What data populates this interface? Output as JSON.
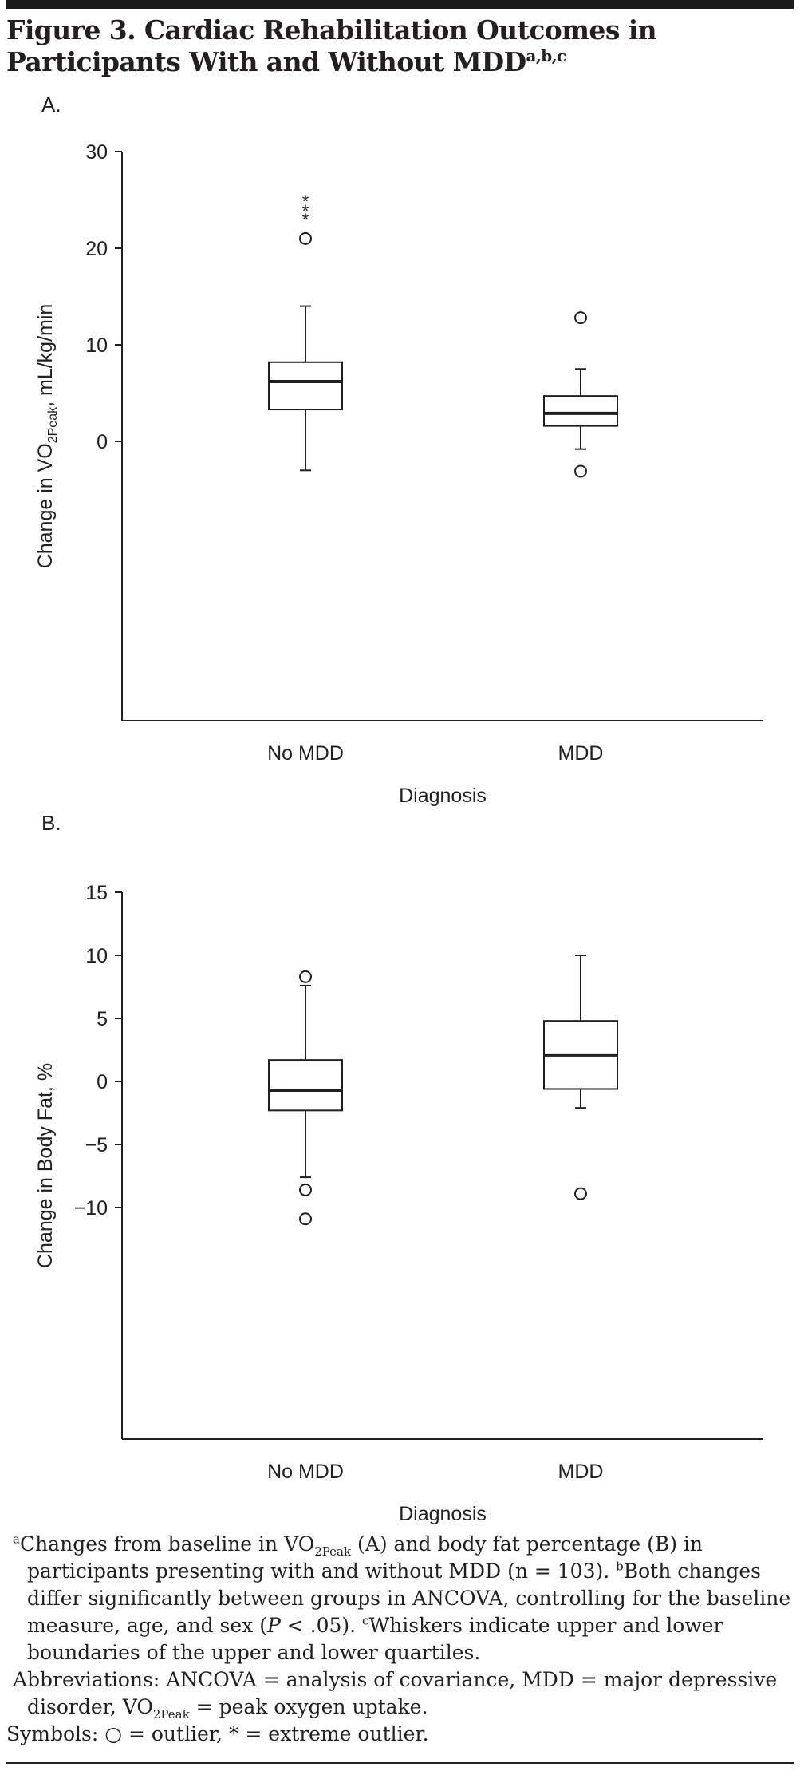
{
  "figure": {
    "title": "Figure 3. Cardiac Rehabilitation Outcomes in Participants With and Without MDD",
    "title_superscript": "a,b,c"
  },
  "chart_data": [
    {
      "type": "boxplot",
      "panel_label": "A.",
      "ylabel": "Change in VO2Peak, mL/kg/min",
      "ylabel_parts": {
        "pre": "Change in VO",
        "sub": "2Peak",
        "post": ", mL/kg/min"
      },
      "xlabel": "Diagnosis",
      "categories": [
        "No MDD",
        "MDD"
      ],
      "ylim": [
        -6.5,
        30
      ],
      "yticks": [
        0,
        10,
        20,
        30
      ],
      "ytick_labels": [
        "0",
        "10",
        "20",
        "30"
      ],
      "boxes": [
        {
          "category": "No MDD",
          "whisker_low": -3,
          "q1": 3.3,
          "median": 6.2,
          "q3": 8.2,
          "whisker_high": 14,
          "outliers": [
            21
          ],
          "extreme_outliers": [
            23.3,
            24.2,
            25.2
          ]
        },
        {
          "category": "MDD",
          "whisker_low": -0.8,
          "q1": 1.6,
          "median": 2.9,
          "q3": 4.7,
          "whisker_high": 7.5,
          "outliers": [
            12.8,
            -3.1
          ],
          "extreme_outliers": []
        }
      ]
    },
    {
      "type": "boxplot",
      "panel_label": "B.",
      "ylabel": "Change in Body Fat, %",
      "xlabel": "Diagnosis",
      "categories": [
        "No MDD",
        "MDD"
      ],
      "ylim": [
        -15.5,
        15
      ],
      "yticks": [
        -10,
        -5,
        0,
        5,
        10,
        15
      ],
      "ytick_labels": [
        "−10",
        "−5",
        "0",
        "5",
        "10",
        "15"
      ],
      "boxes": [
        {
          "category": "No MDD",
          "whisker_low": -7.6,
          "q1": -2.3,
          "median": -0.7,
          "q3": 1.7,
          "whisker_high": 7.6,
          "outliers": [
            8.3,
            -8.6,
            -10.9
          ],
          "extreme_outliers": []
        },
        {
          "category": "MDD",
          "whisker_low": -2.1,
          "q1": -0.6,
          "median": 2.1,
          "q3": 4.8,
          "whisker_high": 10,
          "outliers": [
            -8.9
          ],
          "extreme_outliers": []
        }
      ]
    }
  ],
  "notes": {
    "a_mark": "a",
    "a_pre": "Changes from baseline in VO",
    "a_sub": "2Peak",
    "a_post": " (A) and body fat percentage (B) in participants presenting with and without MDD (n = 103).",
    "b_mark": "b",
    "b_pre": "Both changes differ significantly between groups in ANCOVA, controlling for the baseline measure, age, and sex (",
    "b_p": "P",
    "b_post": " < .05).",
    "c_mark": "c",
    "c_text": "Whiskers indicate upper and lower boundaries of the upper and lower quartiles.",
    "abbr_pre": "Abbreviations: ANCOVA = analysis of covariance, MDD = major depressive disorder, VO",
    "abbr_sub": "2Peak",
    "abbr_post": " = peak oxygen uptake.",
    "symbols": "Symbols: ○ = outlier, * = extreme outlier."
  }
}
